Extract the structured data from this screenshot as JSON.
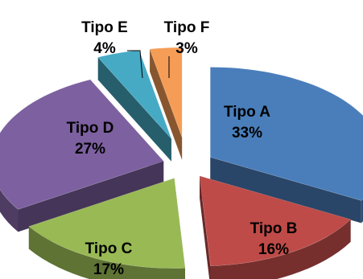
{
  "chart_data": {
    "type": "pie",
    "style": "exploded-3d",
    "title": "",
    "categories": [
      "Tipo A",
      "Tipo B",
      "Tipo C",
      "Tipo D",
      "Tipo E",
      "Tipo F"
    ],
    "values": [
      33,
      16,
      17,
      27,
      4,
      3
    ],
    "value_labels": [
      "33%",
      "16%",
      "17%",
      "27%",
      "4%",
      "3%"
    ],
    "colors": [
      "#4a7ebb",
      "#be4b48",
      "#98b954",
      "#7d60a0",
      "#46aac5",
      "#f59d56"
    ],
    "legend": "none",
    "label_text_colors": [
      "#000000",
      "#000000",
      "#000000",
      "#000000",
      "#000000",
      "#000000"
    ]
  }
}
